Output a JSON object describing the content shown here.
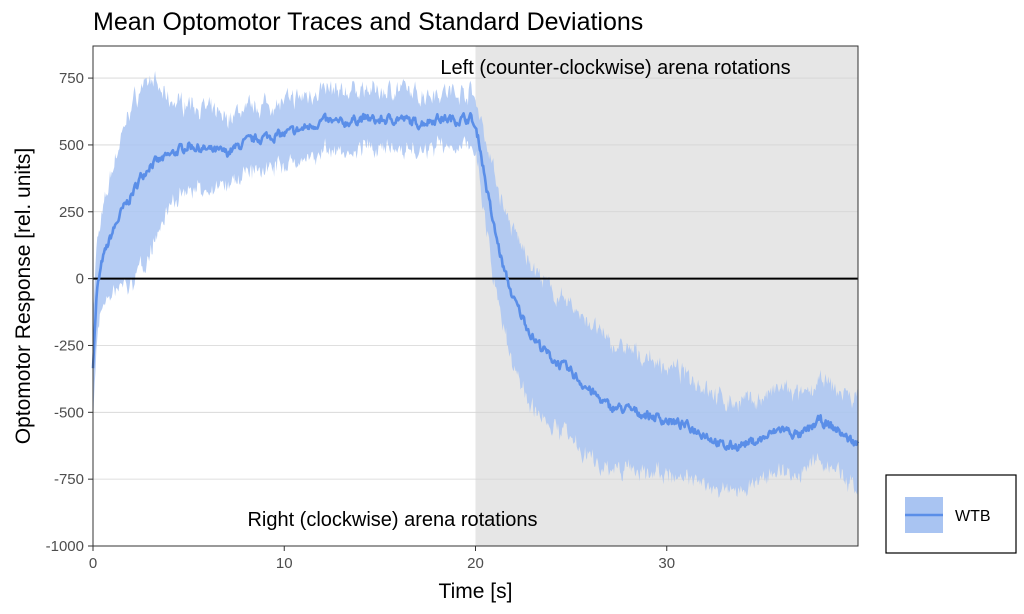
{
  "chart_data": {
    "type": "line",
    "title": "Mean Optomotor Traces and Standard Deviations",
    "xlabel": "Time [s]",
    "ylabel": "Optomotor Response [rel. units]",
    "xlim": [
      0,
      40
    ],
    "ylim": [
      -1000,
      870
    ],
    "x_ticks": [
      0,
      10,
      20,
      30
    ],
    "x_tick_labels": [
      "0",
      "10",
      "20",
      "30"
    ],
    "y_ticks": [
      -1000,
      -750,
      -500,
      -250,
      0,
      250,
      500,
      750
    ],
    "y_tick_labels": [
      "-1000",
      "-750",
      "-500",
      "-250",
      "0",
      "250",
      "500",
      "750"
    ],
    "shaded_region": {
      "x_start": 20,
      "x_end": 40,
      "color": "#e6e6e6"
    },
    "zero_line": 0,
    "annotations": {
      "left_rotation": "Left (counter-clockwise) arena rotations",
      "right_rotation": "Right (clockwise) arena rotations"
    },
    "series": [
      {
        "name": "WTB",
        "line_color": "#5a8ee8",
        "band_color": "#a9c4f2",
        "x": [
          0,
          0.2,
          0.5,
          1,
          1.5,
          2,
          2.5,
          3,
          3.5,
          4,
          5,
          6,
          7,
          8,
          9,
          10,
          11,
          12,
          13,
          14,
          15,
          16,
          17,
          18,
          19,
          19.8,
          20.2,
          20.6,
          21,
          21.5,
          22,
          22.5,
          23,
          24,
          25,
          26,
          27,
          28,
          29,
          30,
          31,
          32,
          33,
          34,
          35,
          36,
          37,
          38,
          39,
          39.5,
          40
        ],
        "mean": [
          -320,
          -50,
          70,
          170,
          250,
          310,
          380,
          430,
          440,
          460,
          500,
          480,
          470,
          510,
          530,
          540,
          560,
          590,
          580,
          600,
          590,
          600,
          580,
          600,
          595,
          600,
          510,
          330,
          180,
          30,
          -80,
          -150,
          -220,
          -300,
          -350,
          -420,
          -480,
          -490,
          -510,
          -530,
          -550,
          -580,
          -630,
          -620,
          -600,
          -560,
          -590,
          -530,
          -570,
          -600,
          -620
        ],
        "sd": [
          200,
          180,
          170,
          240,
          280,
          340,
          330,
          320,
          260,
          200,
          160,
          150,
          130,
          130,
          120,
          120,
          120,
          120,
          115,
          110,
          110,
          110,
          105,
          100,
          100,
          100,
          120,
          170,
          210,
          230,
          250,
          260,
          260,
          250,
          250,
          250,
          240,
          220,
          210,
          200,
          190,
          180,
          170,
          160,
          150,
          150,
          145,
          145,
          150,
          160,
          170
        ]
      }
    ],
    "legend": {
      "position": "right",
      "entries": [
        "WTB"
      ]
    }
  }
}
